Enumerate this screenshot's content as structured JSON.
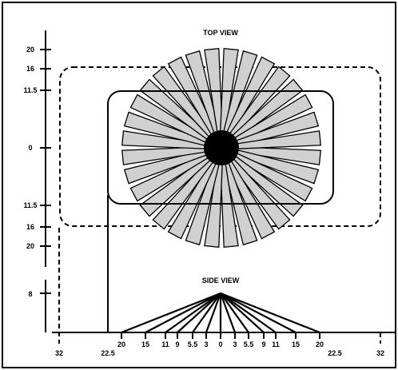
{
  "titles": {
    "top": "TOP VIEW",
    "side": "SIDE VIEW"
  },
  "top_view": {
    "y_ticks": [
      "20",
      "16",
      "11.5",
      "0",
      "11.5",
      "16",
      "20"
    ],
    "beam_count": 32,
    "beam_color": "#d0d0d0"
  },
  "side_view": {
    "y_tick": "8",
    "x_ticks": [
      "32",
      "22.5",
      "20",
      "15",
      "11",
      "9",
      "5.5",
      "3",
      "0",
      "3",
      "5.5",
      "9",
      "11",
      "15",
      "20",
      "22.5",
      "32"
    ]
  }
}
